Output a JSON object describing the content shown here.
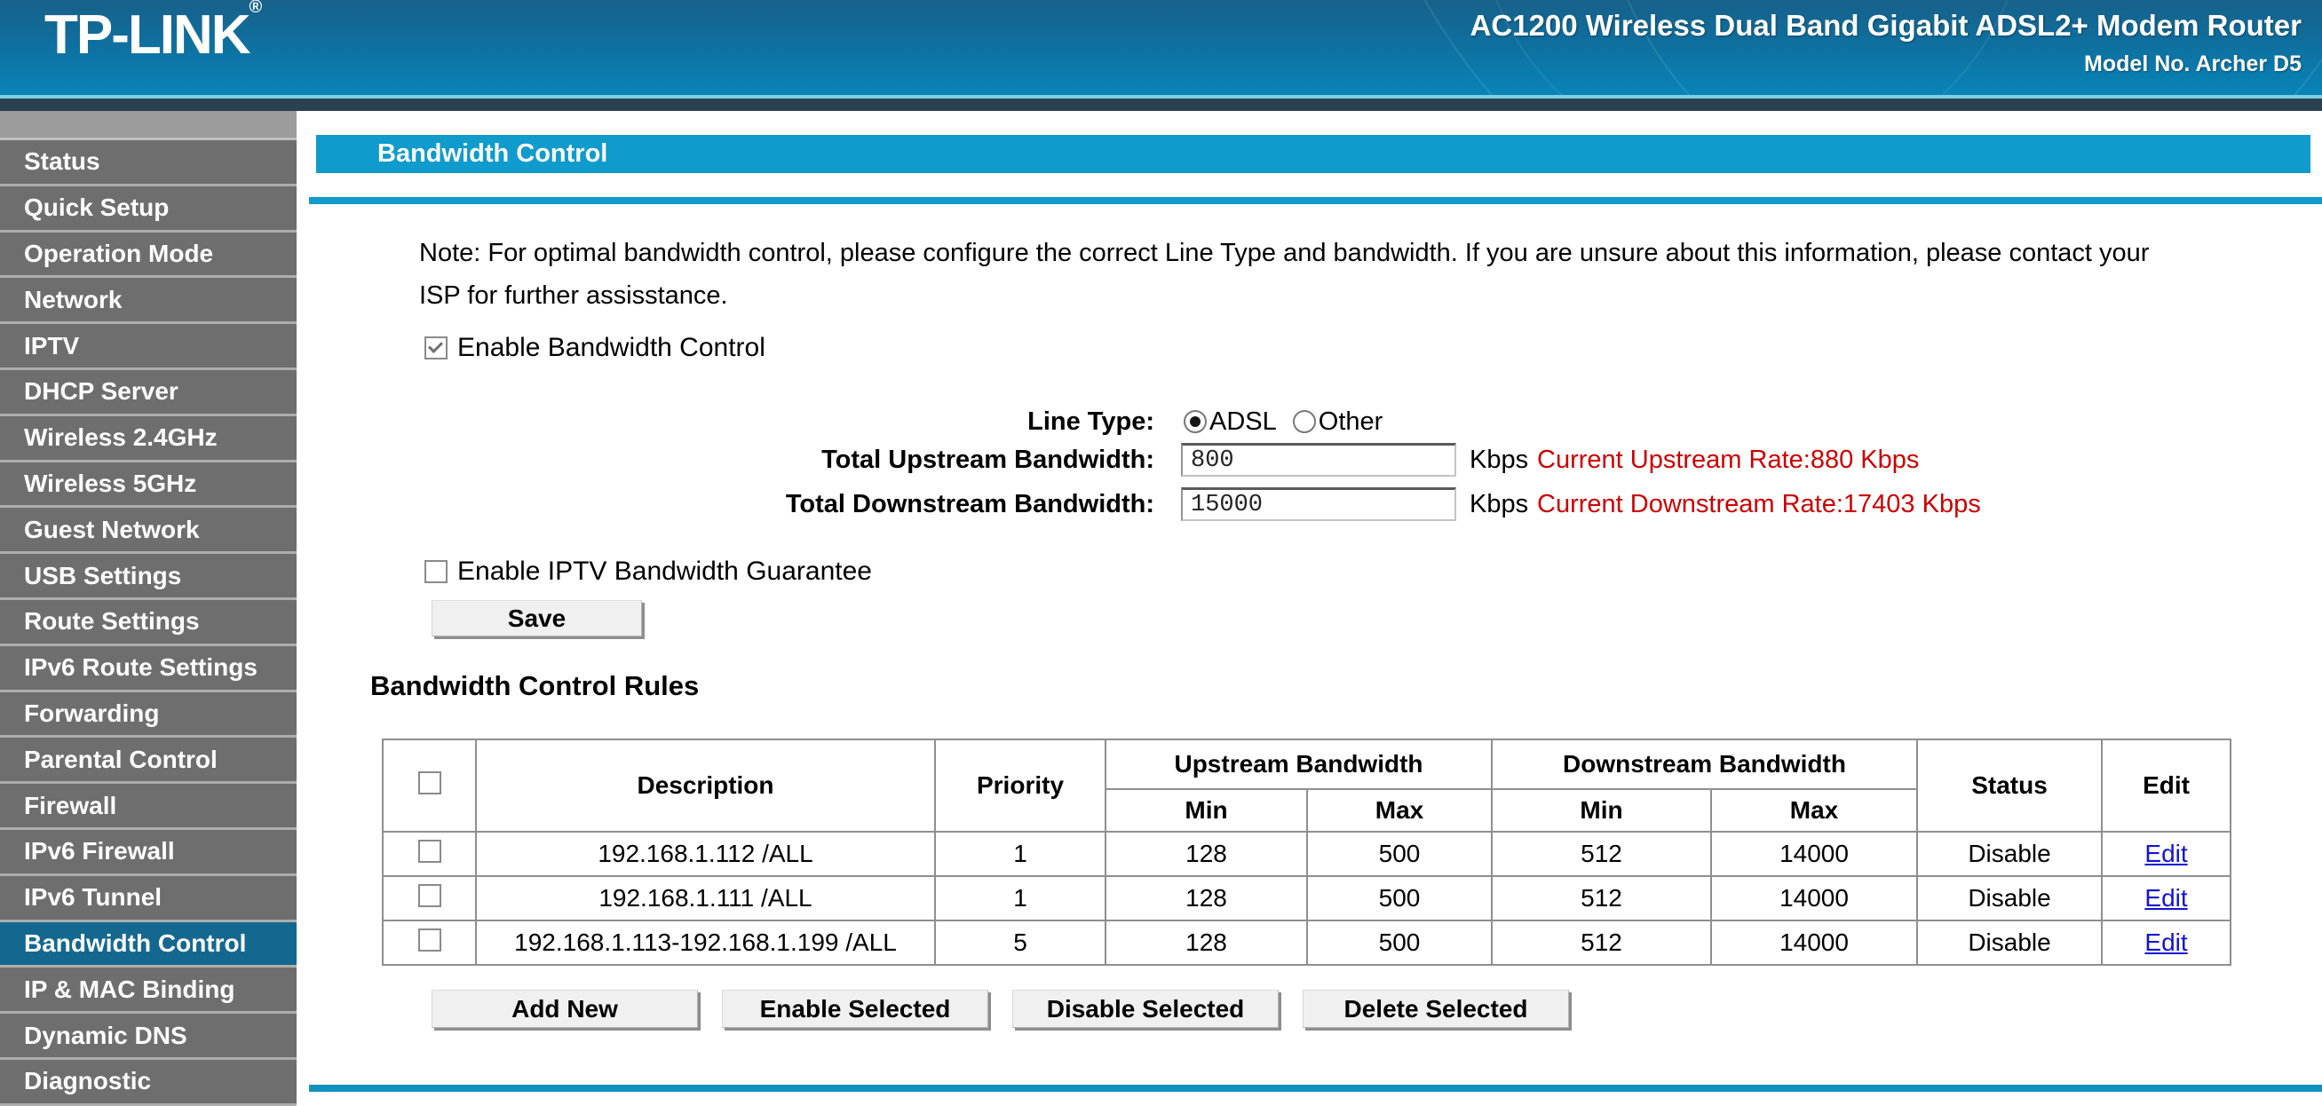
{
  "header": {
    "logo": "TP-LINK",
    "logo_reg": "®",
    "product_title": "AC1200 Wireless Dual Band Gigabit ADSL2+ Modem Router",
    "model": "Model No. Archer D5"
  },
  "sidebar": {
    "items": [
      {
        "label": "Status",
        "active": false
      },
      {
        "label": "Quick Setup",
        "active": false
      },
      {
        "label": "Operation Mode",
        "active": false
      },
      {
        "label": "Network",
        "active": false
      },
      {
        "label": "IPTV",
        "active": false
      },
      {
        "label": "DHCP Server",
        "active": false
      },
      {
        "label": "Wireless 2.4GHz",
        "active": false
      },
      {
        "label": "Wireless 5GHz",
        "active": false
      },
      {
        "label": "Guest Network",
        "active": false
      },
      {
        "label": "USB Settings",
        "active": false
      },
      {
        "label": "Route Settings",
        "active": false
      },
      {
        "label": "IPv6 Route Settings",
        "active": false
      },
      {
        "label": "Forwarding",
        "active": false
      },
      {
        "label": "Parental Control",
        "active": false
      },
      {
        "label": "Firewall",
        "active": false
      },
      {
        "label": "IPv6 Firewall",
        "active": false
      },
      {
        "label": "IPv6 Tunnel",
        "active": false
      },
      {
        "label": "Bandwidth Control",
        "active": true
      },
      {
        "label": "IP & MAC Binding",
        "active": false
      },
      {
        "label": "Dynamic DNS",
        "active": false
      },
      {
        "label": "Diagnostic",
        "active": false
      }
    ]
  },
  "main": {
    "page_title": "Bandwidth Control",
    "note": "Note: For optimal bandwidth control, please configure the correct Line Type and bandwidth. If you are unsure about this information, please contact your ISP for further assisstance.",
    "enable_bc_label": "Enable Bandwidth Control",
    "enable_bc_checked": true,
    "line_type": {
      "label": "Line Type:",
      "options": [
        {
          "label": "ADSL",
          "selected": true
        },
        {
          "label": "Other",
          "selected": false
        }
      ]
    },
    "upstream": {
      "label": "Total Upstream Bandwidth:",
      "value": "800",
      "unit": "Kbps",
      "current": "Current Upstream Rate:880 Kbps"
    },
    "downstream": {
      "label": "Total Downstream Bandwidth:",
      "value": "15000",
      "unit": "Kbps",
      "current": "Current Downstream Rate:17403 Kbps"
    },
    "iptv_label": "Enable IPTV Bandwidth Guarantee",
    "iptv_checked": false,
    "save_label": "Save",
    "rules": {
      "heading": "Bandwidth Control Rules",
      "columns": {
        "description": "Description",
        "priority": "Priority",
        "upstream": "Upstream Bandwidth",
        "downstream": "Downstream Bandwidth",
        "min": "Min",
        "max": "Max",
        "status": "Status",
        "edit": "Edit"
      },
      "rows": [
        {
          "checked": false,
          "description": "192.168.1.112 /ALL",
          "priority": "1",
          "up_min": "128",
          "up_max": "500",
          "down_min": "512",
          "down_max": "14000",
          "status": "Disable",
          "edit": "Edit"
        },
        {
          "checked": false,
          "description": "192.168.1.111 /ALL",
          "priority": "1",
          "up_min": "128",
          "up_max": "500",
          "down_min": "512",
          "down_max": "14000",
          "status": "Disable",
          "edit": "Edit"
        },
        {
          "checked": false,
          "description": "192.168.1.113-192.168.1.199 /ALL",
          "priority": "5",
          "up_min": "128",
          "up_max": "500",
          "down_min": "512",
          "down_max": "14000",
          "status": "Disable",
          "edit": "Edit"
        }
      ]
    },
    "buttons": {
      "add_new": "Add New",
      "enable_selected": "Enable Selected",
      "disable_selected": "Disable Selected",
      "delete_selected": "Delete Selected"
    }
  },
  "colors": {
    "accent_blue": "#0f9bcb",
    "active_item_blue": "#14688f",
    "alert_red": "#cc0000",
    "link_blue": "#1313d2",
    "sidebar_gray": "#6e6e6e"
  }
}
